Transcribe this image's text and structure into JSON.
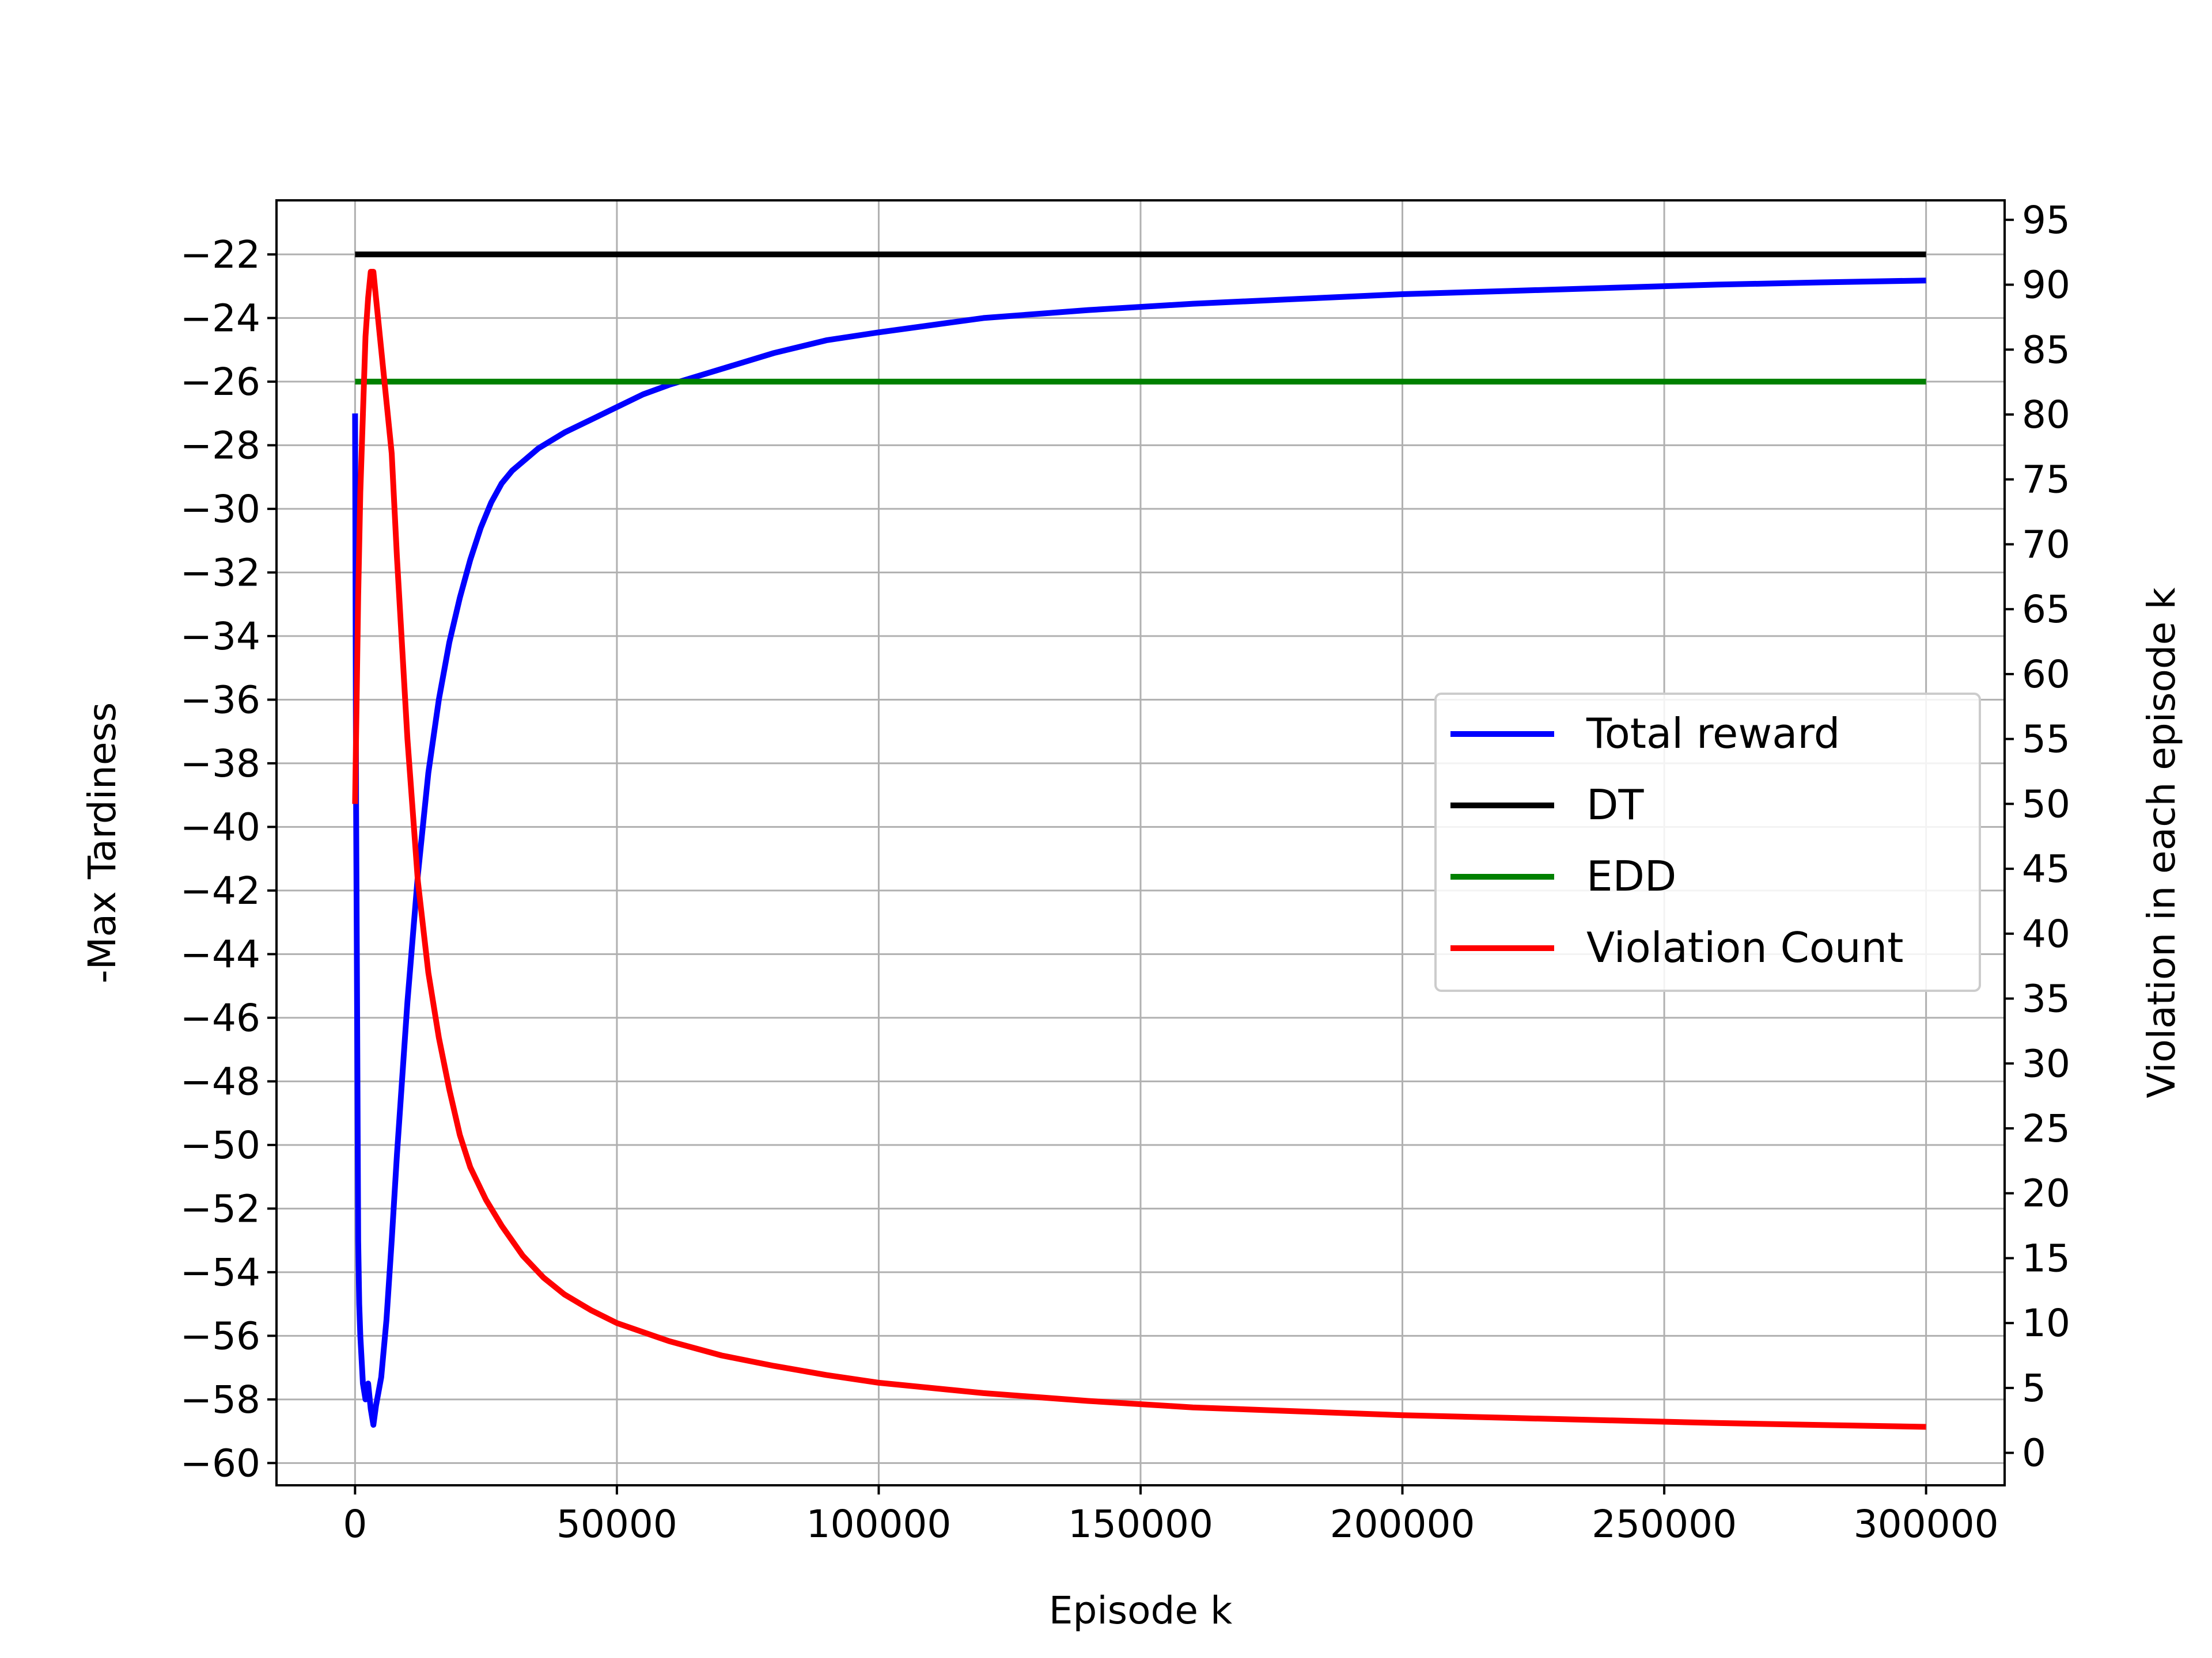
{
  "chart_data": {
    "type": "line",
    "title": "",
    "xlabel": "Episode k",
    "ylabel_left": "-Max Tardiness",
    "ylabel_right": "Violation in each episode k",
    "xlim": [
      -15000,
      315000
    ],
    "ylim_left": [
      -60.7,
      -20.3
    ],
    "ylim_right": [
      -2.5,
      96.5
    ],
    "x_ticks": [
      0,
      50000,
      100000,
      150000,
      200000,
      250000,
      300000
    ],
    "x_tick_labels": [
      "0",
      "50000",
      "100000",
      "150000",
      "200000",
      "250000",
      "300000"
    ],
    "y_left_ticks": [
      -22,
      -24,
      -26,
      -28,
      -30,
      -32,
      -34,
      -36,
      -38,
      -40,
      -42,
      -44,
      -46,
      -48,
      -50,
      -52,
      -54,
      -56,
      -58,
      -60
    ],
    "y_left_tick_labels": [
      "−22",
      "−24",
      "−26",
      "−28",
      "−30",
      "−32",
      "−34",
      "−36",
      "−38",
      "−40",
      "−42",
      "−44",
      "−46",
      "−48",
      "−50",
      "−52",
      "−54",
      "−56",
      "−58",
      "−60"
    ],
    "y_right_ticks": [
      95,
      90,
      85,
      80,
      75,
      70,
      65,
      60,
      55,
      50,
      45,
      40,
      35,
      30,
      25,
      20,
      15,
      10,
      5,
      0
    ],
    "y_right_tick_labels": [
      "95",
      "90",
      "85",
      "80",
      "75",
      "70",
      "65",
      "60",
      "55",
      "50",
      "45",
      "40",
      "35",
      "30",
      "25",
      "20",
      "15",
      "10",
      "5",
      "0"
    ],
    "grid": true,
    "legend_position": "center-right",
    "series": [
      {
        "name": "Total reward",
        "axis": "left",
        "color": "#0000ff",
        "x": [
          0,
          200,
          400,
          600,
          800,
          1000,
          1500,
          2000,
          2500,
          3000,
          3500,
          4000,
          5000,
          6000,
          7000,
          8000,
          10000,
          12000,
          14000,
          16000,
          18000,
          20000,
          22000,
          24000,
          26000,
          28000,
          30000,
          35000,
          40000,
          45000,
          50000,
          55000,
          60000,
          70000,
          80000,
          90000,
          100000,
          120000,
          140000,
          160000,
          180000,
          200000,
          220000,
          240000,
          260000,
          280000,
          300000
        ],
        "y": [
          -27,
          -39.4,
          -46,
          -53,
          -55,
          -56,
          -57.5,
          -58,
          -57.5,
          -58.3,
          -58.8,
          -58.2,
          -57.3,
          -55.5,
          -53,
          -50.3,
          -45.5,
          -41.5,
          -38.3,
          -36,
          -34.2,
          -32.8,
          -31.6,
          -30.6,
          -29.8,
          -29.2,
          -28.8,
          -28.1,
          -27.6,
          -27.2,
          -26.8,
          -26.4,
          -26.1,
          -25.6,
          -25.1,
          -24.7,
          -24.45,
          -24,
          -23.75,
          -23.55,
          -23.4,
          -23.25,
          -23.15,
          -23.05,
          -22.95,
          -22.88,
          -22.82
        ]
      },
      {
        "name": "DT",
        "axis": "left",
        "color": "#000000",
        "x": [
          0,
          300000
        ],
        "y": [
          -22,
          -22
        ]
      },
      {
        "name": "EDD",
        "axis": "left",
        "color": "#008000",
        "x": [
          0,
          300000
        ],
        "y": [
          -26,
          -26
        ]
      },
      {
        "name": "Violation Count",
        "axis": "right",
        "color": "#ff0000",
        "x": [
          0,
          300,
          600,
          1000,
          1500,
          2000,
          2500,
          3000,
          3500,
          4000,
          5000,
          6000,
          7000,
          8000,
          9000,
          10000,
          12000,
          14000,
          16000,
          18000,
          20000,
          22000,
          25000,
          28000,
          32000,
          36000,
          40000,
          45000,
          50000,
          60000,
          70000,
          80000,
          90000,
          100000,
          120000,
          140000,
          160000,
          180000,
          200000,
          220000,
          240000,
          260000,
          280000,
          300000
        ],
        "y": [
          50,
          58,
          66,
          74,
          80,
          86,
          89,
          91,
          91,
          89,
          85,
          81,
          77,
          69,
          62,
          55,
          44,
          37,
          32,
          28,
          24.5,
          22,
          19.5,
          17.5,
          15.2,
          13.5,
          12.2,
          11,
          10,
          8.6,
          7.5,
          6.7,
          6,
          5.4,
          4.6,
          4,
          3.5,
          3.2,
          2.9,
          2.7,
          2.5,
          2.3,
          2.15,
          2
        ]
      }
    ]
  }
}
